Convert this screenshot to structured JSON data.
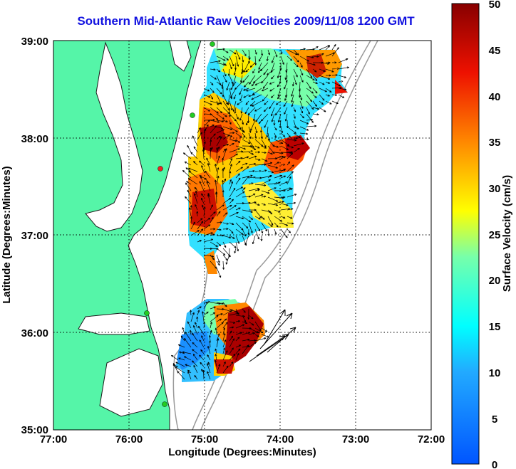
{
  "title": "Southern Mid-Atlantic Raw Velocities 2009/11/08 1200 GMT",
  "xlabel": "Longitude (Degrees:Minutes)",
  "ylabel": "Latitude (Degrees:Minutes)",
  "colorbar_label": "Surface Velocity (cm/s)",
  "x_ticks": [
    "77:00",
    "76:00",
    "75:00",
    "74:00",
    "73:00",
    "72:00"
  ],
  "y_ticks": [
    "39:00",
    "38:00",
    "37:00",
    "36:00",
    "35:00"
  ],
  "colorbar_ticks": [
    "50",
    "45",
    "40",
    "35",
    "30",
    "25",
    "20",
    "15",
    "10",
    "5",
    "0"
  ],
  "colors": {
    "land": "#55f5a8",
    "coastline": "#1a1a1a",
    "title": "#1010e0",
    "station": "#22cc22",
    "station_alert": "#ee2222"
  },
  "chart_data": {
    "type": "heatmap",
    "title": "Southern Mid-Atlantic Raw Velocities 2009/11/08 1200 GMT",
    "xlabel": "Longitude (Degrees:Minutes)",
    "ylabel": "Latitude (Degrees:Minutes)",
    "xlim": [
      -77,
      -72
    ],
    "ylim": [
      35,
      39
    ],
    "grid": true,
    "colorbar": {
      "label": "Surface Velocity (cm/s)",
      "range": [
        0,
        50
      ],
      "colormap": "jet"
    }
  }
}
